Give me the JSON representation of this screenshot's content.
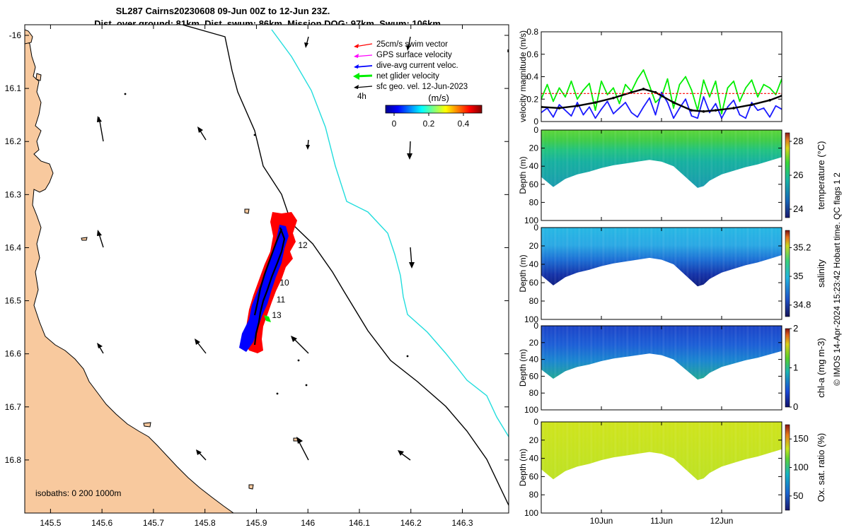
{
  "title": {
    "line1": "SL287 Cairns20230608 09-Jun 00Z to 12-Jun 23Z.",
    "line2": "Dist. over ground: 81km. Dist. swum: 86km. Mission DOG: 97km. Swum: 106km"
  },
  "colors": {
    "land": "#f8c99e",
    "swim_vector": "#ff0000",
    "gps_velocity": "#ff00ff",
    "current": "#0000ff",
    "net_velocity": "#00ee00",
    "geo_velocity": "#000000",
    "isobath_200": "#000000",
    "isobath_1000": "#22dddd"
  },
  "map": {
    "x_ticks": [
      "145.5",
      "145.6",
      "145.7",
      "145.8",
      "145.9",
      "146",
      "146.1",
      "146.2",
      "146.3"
    ],
    "x_range": [
      145.45,
      146.39
    ],
    "y_ticks": [
      "-16",
      "16.1",
      "16.2",
      "16.3",
      "16.4",
      "16.5",
      "16.6",
      "16.7",
      "16.8"
    ],
    "y_range": [
      -16.9,
      -15.98
    ],
    "isobath_label": "isobaths: 0   200  1000m",
    "time_labels": [
      "12",
      "10",
      "11",
      "13"
    ],
    "legend": {
      "items": [
        "25cm/s swim vector",
        "GPS surface velocity",
        "dive-avg current veloc.",
        "net glider velocity",
        "sfc geo. vel. 12-Jun-2023"
      ],
      "scale_label": "4h",
      "units": "(m/s)",
      "colorbar_ticks": [
        "0",
        "0.2",
        "0.4"
      ]
    }
  },
  "chart_data": [
    {
      "type": "line",
      "name": "velocity",
      "ylabel": "velocity magnitude (m/s)",
      "ylim": [
        0,
        0.8
      ],
      "y_ticks": [
        "0",
        "0.2",
        "0.4",
        "0.6",
        "0.8"
      ],
      "xlim": [
        9.0,
        13.0
      ],
      "series": [
        {
          "name": "net glider velocity",
          "color": "#00ee00",
          "x": [
            9.0,
            9.1,
            9.2,
            9.3,
            9.4,
            9.5,
            9.6,
            9.7,
            9.8,
            9.9,
            10.0,
            10.1,
            10.2,
            10.3,
            10.4,
            10.5,
            10.6,
            10.7,
            10.8,
            10.9,
            11.0,
            11.1,
            11.2,
            11.3,
            11.4,
            11.5,
            11.6,
            11.7,
            11.8,
            11.9,
            12.0,
            12.1,
            12.2,
            12.3,
            12.4,
            12.5,
            12.6,
            12.7,
            12.8,
            12.9,
            13.0
          ],
          "y": [
            0.2,
            0.33,
            0.18,
            0.3,
            0.22,
            0.36,
            0.2,
            0.28,
            0.34,
            0.1,
            0.36,
            0.24,
            0.3,
            0.16,
            0.33,
            0.27,
            0.38,
            0.46,
            0.32,
            0.17,
            0.22,
            0.38,
            0.12,
            0.33,
            0.4,
            0.28,
            0.1,
            0.37,
            0.22,
            0.36,
            0.07,
            0.3,
            0.36,
            0.18,
            0.3,
            0.37,
            0.22,
            0.33,
            0.3,
            0.24,
            0.38
          ]
        },
        {
          "name": "dive-avg current",
          "color": "#1a1aff",
          "x": [
            9.0,
            9.1,
            9.2,
            9.3,
            9.4,
            9.5,
            9.6,
            9.7,
            9.8,
            9.9,
            10.0,
            10.1,
            10.2,
            10.3,
            10.4,
            10.5,
            10.6,
            10.7,
            10.8,
            10.9,
            11.0,
            11.1,
            11.2,
            11.3,
            11.4,
            11.5,
            11.6,
            11.7,
            11.8,
            11.9,
            12.0,
            12.1,
            12.2,
            12.3,
            12.4,
            12.5,
            12.6,
            12.7,
            12.8,
            12.9,
            13.0
          ],
          "y": [
            0.08,
            0.12,
            0.04,
            0.15,
            0.1,
            0.05,
            0.17,
            0.06,
            0.13,
            0.03,
            0.11,
            0.18,
            0.07,
            0.12,
            0.17,
            0.08,
            0.04,
            0.13,
            0.21,
            0.06,
            0.26,
            0.17,
            0.03,
            0.12,
            0.2,
            0.05,
            0.03,
            0.22,
            0.08,
            0.16,
            0.03,
            0.13,
            0.19,
            0.06,
            0.03,
            0.17,
            0.1,
            0.12,
            0.04,
            0.14,
            0.11
          ]
        },
        {
          "name": "sfc geo. vel.",
          "color": "#000000",
          "x": [
            9.0,
            9.3,
            9.6,
            9.9,
            10.2,
            10.5,
            10.7,
            10.9,
            11.2,
            11.5,
            11.7,
            11.9,
            12.2,
            12.5,
            12.8,
            13.0
          ],
          "y": [
            0.13,
            0.12,
            0.14,
            0.17,
            0.21,
            0.26,
            0.29,
            0.26,
            0.17,
            0.1,
            0.09,
            0.1,
            0.12,
            0.15,
            0.19,
            0.23
          ]
        },
        {
          "name": "25cm/s swim",
          "color": "#ff0000",
          "x": [
            9.0,
            13.0
          ],
          "y": [
            0.25,
            0.25
          ]
        }
      ]
    },
    {
      "type": "heatmap",
      "name": "temperature",
      "ylabel": "Depth (m)",
      "y_ticks": [
        "0",
        "20",
        "40",
        "60",
        "80",
        "100"
      ],
      "ylim": [
        0,
        100
      ],
      "colorbar_label": "temperature (°C)",
      "colorbar_ticks": [
        "24",
        "26",
        "28"
      ],
      "crange": [
        23.5,
        28.5
      ],
      "surface_value": 27.0,
      "bottom_value": 25.0
    },
    {
      "type": "heatmap",
      "name": "salinity",
      "ylabel": "Depth (m)",
      "y_ticks": [
        "0",
        "20",
        "40",
        "60",
        "80",
        "100"
      ],
      "ylim": [
        0,
        100
      ],
      "colorbar_label": "salinity",
      "colorbar_ticks": [
        "34.8",
        "35",
        "35.2"
      ],
      "crange": [
        34.72,
        35.32
      ],
      "surface_value": 35.1,
      "bottom_value": 34.76
    },
    {
      "type": "heatmap",
      "name": "chl-a",
      "ylabel": "Depth (m)",
      "y_ticks": [
        "0",
        "20",
        "40",
        "60",
        "80",
        "100"
      ],
      "ylim": [
        0,
        100
      ],
      "colorbar_label": "chl-a (mg m-3)",
      "colorbar_ticks": [
        "0",
        "1",
        "2"
      ],
      "crange": [
        0,
        2
      ],
      "surface_value": 0.3,
      "bottom_value": 0.65
    },
    {
      "type": "heatmap",
      "name": "oxygen",
      "ylabel": "Depth (m)",
      "y_ticks": [
        "0",
        "20",
        "40",
        "60",
        "80",
        "100"
      ],
      "ylim": [
        0,
        100
      ],
      "colorbar_label": "Ox. sat. ratio (%)",
      "colorbar_ticks": [
        "50",
        "100",
        "150"
      ],
      "crange": [
        25,
        175
      ],
      "surface_value": 128,
      "bottom_value": 124
    }
  ],
  "time_axis": {
    "labels": [
      "10Jun",
      "11Jun",
      "12Jun"
    ],
    "values": [
      10,
      11,
      12
    ],
    "range": [
      9.0,
      13.0
    ]
  },
  "profile_depth": {
    "x": [
      9.0,
      9.2,
      9.4,
      9.6,
      9.8,
      10.0,
      10.2,
      10.4,
      10.6,
      10.8,
      11.0,
      11.2,
      11.4,
      11.6,
      11.7,
      11.8,
      12.0,
      12.2,
      12.4,
      12.6,
      12.8,
      13.0
    ],
    "y": [
      52,
      63,
      54,
      49,
      46,
      42,
      39,
      37,
      35,
      33,
      35,
      40,
      52,
      64,
      62,
      56,
      49,
      45,
      41,
      38,
      34,
      30
    ]
  },
  "credit": "© IMOS 14-Apr-2024 15:23:42 Hobart time. QC flags 1  2"
}
